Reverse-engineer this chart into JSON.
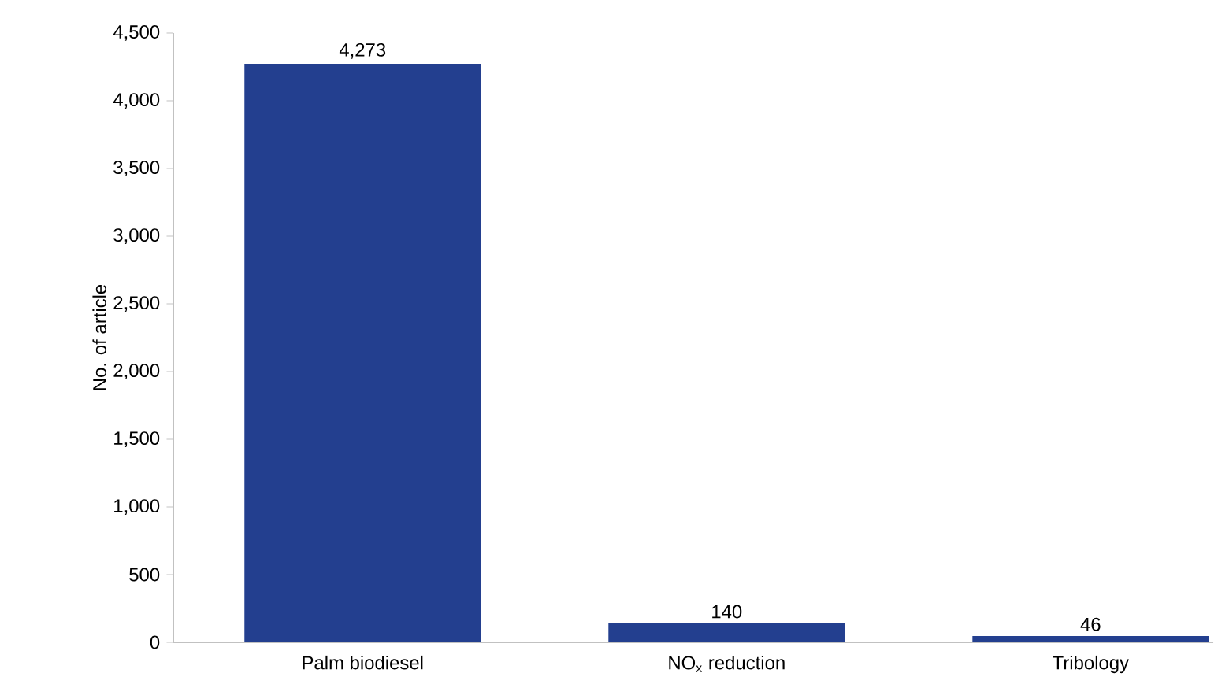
{
  "chart_data": {
    "type": "bar",
    "categories": [
      "Palm biodiesel",
      "NO$_{x}$ reduction",
      "Tribology"
    ],
    "values": [
      4273,
      140,
      46
    ],
    "value_labels": [
      "4,273",
      "140",
      "46"
    ],
    "color": "#233f8f",
    "ylabel": "No. of article",
    "ylim": [
      0,
      4500
    ],
    "yticks": [
      0,
      500,
      {
        "value": 1000,
        "label": "1,000"
      },
      {
        "value": 1500,
        "label": "1,500"
      },
      {
        "value": 2000,
        "label": "2,000"
      },
      {
        "value": 2500,
        "label": "2,500"
      },
      {
        "value": 3000,
        "label": "3,000"
      },
      {
        "value": 3500,
        "label": "3,500"
      },
      {
        "value": 4000,
        "label": "4,000"
      },
      {
        "value": 4500,
        "label": "4,500"
      }
    ],
    "grid": false
  }
}
